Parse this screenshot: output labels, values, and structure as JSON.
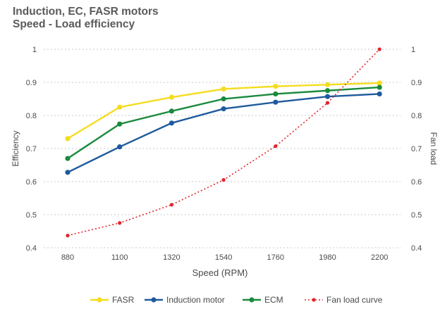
{
  "chart_data": {
    "type": "line",
    "title": "Induction, EC, FASR motors",
    "subtitle": "Speed - Load efficiency",
    "xlabel": "Speed (RPM)",
    "ylabel": "Efficiency",
    "y2label": "Fan load",
    "categories": [
      "880",
      "1100",
      "1320",
      "1540",
      "1760",
      "1980",
      "2200"
    ],
    "ylim": [
      0.4,
      1
    ],
    "y2lim": [
      0.4,
      1
    ],
    "yticks": [
      "0.4",
      "0.5",
      "0.6",
      "0.7",
      "0.8",
      "0.9",
      "1"
    ],
    "grid": "horizontal-dashed",
    "legend_position": "bottom",
    "series": [
      {
        "name": "FASR",
        "color": "#f5dc1e",
        "style": "solid",
        "axis": "left",
        "values": [
          0.73,
          0.825,
          0.855,
          0.88,
          0.888,
          0.893,
          0.898
        ]
      },
      {
        "name": "Induction motor",
        "color": "#1f5a9e",
        "style": "solid",
        "axis": "left",
        "values": [
          0.628,
          0.705,
          0.777,
          0.82,
          0.84,
          0.857,
          0.865
        ]
      },
      {
        "name": "ECM",
        "color": "#1a8a3c",
        "style": "solid",
        "axis": "left",
        "values": [
          0.67,
          0.774,
          0.813,
          0.85,
          0.865,
          0.875,
          0.885
        ]
      },
      {
        "name": "Fan load curve",
        "color": "#e3242b",
        "style": "dotted",
        "axis": "right",
        "values": [
          0.437,
          0.475,
          0.53,
          0.605,
          0.707,
          0.838,
          1.0
        ]
      }
    ]
  }
}
